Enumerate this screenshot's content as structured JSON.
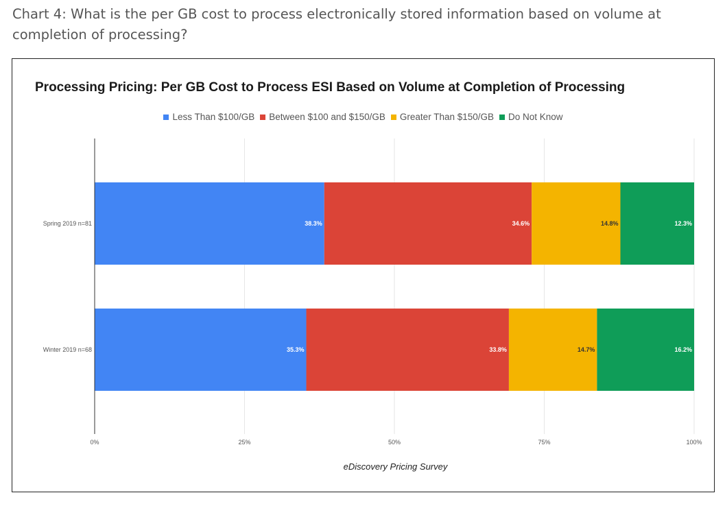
{
  "page": {
    "heading": "Chart 4: What is the per GB cost to process electronically stored information based on volume at completion of processing?"
  },
  "chart_data": {
    "type": "bar",
    "orientation": "horizontal",
    "stacked": true,
    "title": "Processing Pricing: Per GB Cost to Process ESI Based on Volume at Completion of Processing",
    "xlabel": "eDiscovery Pricing Survey",
    "ylabel": "",
    "xlim": [
      0,
      100
    ],
    "x_ticks": [
      "0%",
      "25%",
      "50%",
      "75%",
      "100%"
    ],
    "grid": true,
    "legend_position": "top",
    "categories": [
      "Spring 2019 n=81",
      "Winter 2019 n=68"
    ],
    "series": [
      {
        "name": "Less Than $100/GB",
        "color": "#4285f4",
        "label_color": "#ffffff",
        "values": [
          38.3,
          35.3
        ],
        "labels": [
          "38.3%",
          "35.3%"
        ]
      },
      {
        "name": "Between $100 and $150/GB",
        "color": "#db4437",
        "label_color": "#ffffff",
        "values": [
          34.6,
          33.8
        ],
        "labels": [
          "34.6%",
          "33.8%"
        ]
      },
      {
        "name": "Greater Than $150/GB",
        "color": "#f4b400",
        "label_color": "#333333",
        "values": [
          14.8,
          14.7
        ],
        "labels": [
          "14.8%",
          "14.7%"
        ]
      },
      {
        "name": "Do Not Know",
        "color": "#0f9d58",
        "label_color": "#ffffff",
        "values": [
          12.3,
          16.2
        ],
        "labels": [
          "12.3%",
          "16.2%"
        ]
      }
    ]
  }
}
